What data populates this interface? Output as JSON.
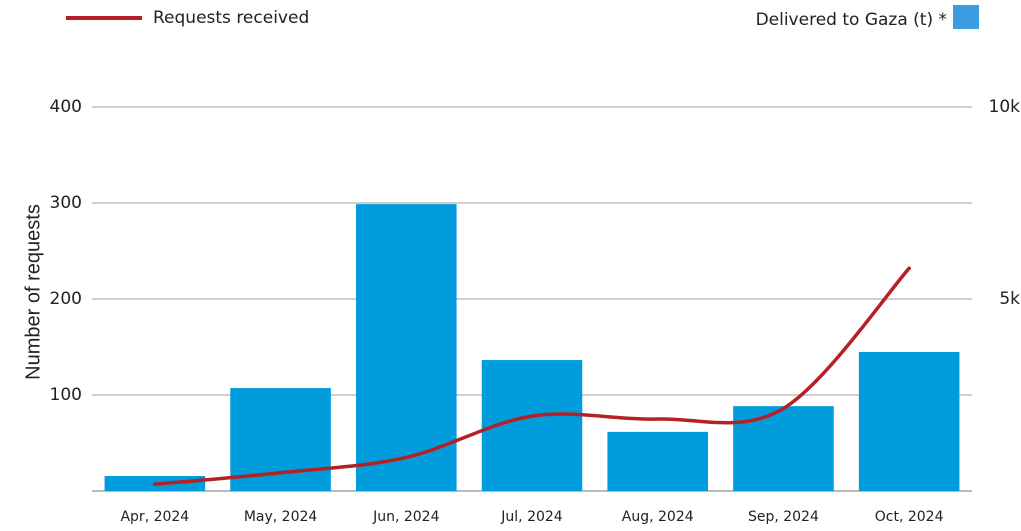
{
  "chart_data": {
    "type": "bar_line",
    "y_label": "Number of requests",
    "categories": [
      "Apr, 2024",
      "May, 2024",
      "Jun, 2024",
      "Jul, 2024",
      "Aug, 2024",
      "Sep, 2024",
      "Oct, 2024"
    ],
    "series": [
      {
        "name": "Requests received",
        "color": "#b52025",
        "type": "line",
        "axis": "y",
        "values": [
          7,
          19,
          35,
          78,
          75,
          86,
          232
        ]
      },
      {
        "name": "Delivered to Gaza (t) *",
        "color": "#009cdc",
        "type": "bar",
        "axis": "y2",
        "values": [
          390,
          2680,
          7470,
          3410,
          1540,
          2210,
          3620
        ]
      }
    ],
    "ylim": [
      0,
      400
    ],
    "yticks": [
      100,
      200,
      300,
      400
    ],
    "y2lim": [
      0,
      10000
    ],
    "y2ticks": [
      {
        "value": 5000,
        "label": "5k"
      },
      {
        "value": 10000,
        "label": "10k"
      }
    ],
    "grid": true
  }
}
